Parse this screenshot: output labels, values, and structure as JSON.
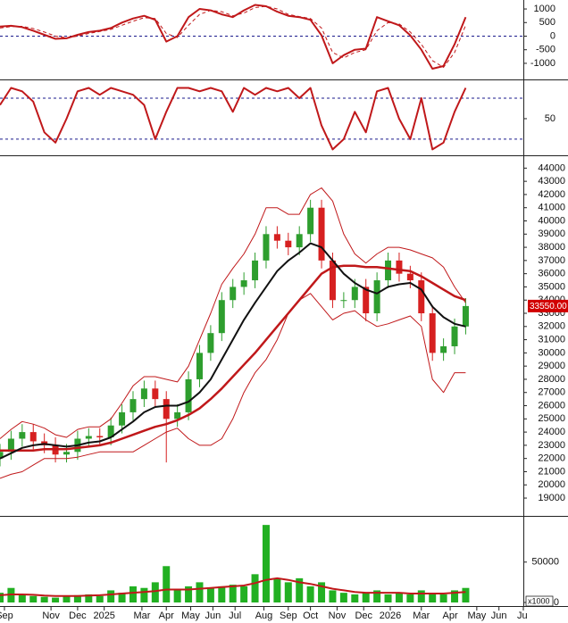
{
  "chart_data": [
    {
      "type": "line",
      "x": [
        0,
        5,
        10,
        15,
        20,
        25,
        30,
        35,
        40,
        45,
        50,
        55,
        60,
        65,
        70,
        75,
        80,
        85,
        90,
        95,
        100,
        105,
        110,
        115,
        120,
        125,
        130,
        135,
        140,
        145,
        150,
        155,
        160,
        165,
        170,
        175,
        180,
        185,
        190,
        195,
        200,
        205,
        210
      ],
      "xlim": [
        0,
        236
      ],
      "ylim": [
        -1560,
        1330
      ],
      "yticks": [
        1000,
        500,
        0,
        -500,
        -1000
      ],
      "hlines": [
        0
      ],
      "hline_color": "#1a1a8c",
      "series": [
        {
          "color": "#c0181a",
          "dashed": false,
          "values": [
            350,
            380,
            330,
            200,
            50,
            -100,
            -80,
            50,
            150,
            200,
            300,
            500,
            650,
            750,
            600,
            -200,
            0,
            700,
            1000,
            950,
            800,
            700,
            950,
            1150,
            1100,
            900,
            750,
            700,
            600,
            30,
            -1000,
            -700,
            -500,
            -460,
            700,
            550,
            400,
            30,
            -500,
            -1200,
            -1100,
            -300,
            700
          ]
        },
        {
          "color": "#c0181a",
          "dashed": true,
          "values": [
            300,
            350,
            360,
            280,
            150,
            0,
            -60,
            0,
            100,
            170,
            250,
            400,
            550,
            680,
            650,
            100,
            -50,
            400,
            800,
            950,
            900,
            750,
            850,
            1050,
            1100,
            1000,
            800,
            720,
            650,
            300,
            -600,
            -800,
            -600,
            -500,
            200,
            500,
            450,
            150,
            -300,
            -900,
            -1150,
            -600,
            400
          ]
        }
      ]
    },
    {
      "type": "line",
      "x": [
        0,
        5,
        10,
        15,
        20,
        25,
        30,
        35,
        40,
        45,
        50,
        55,
        60,
        65,
        70,
        75,
        80,
        85,
        90,
        95,
        100,
        105,
        110,
        115,
        120,
        125,
        130,
        135,
        140,
        145,
        150,
        155,
        160,
        165,
        170,
        175,
        180,
        185,
        190,
        195,
        200,
        205,
        210
      ],
      "xlim": [
        0,
        236
      ],
      "ylim": [
        -1,
        103.5
      ],
      "yticks": [
        50
      ],
      "hlines": [
        80,
        20
      ],
      "hline_color": "#1a1a8c",
      "series": [
        {
          "color": "#c0181a",
          "dashed": false,
          "values": [
            70,
            95,
            90,
            75,
            30,
            15,
            50,
            90,
            95,
            85,
            95,
            90,
            85,
            70,
            20,
            60,
            95,
            95,
            90,
            95,
            90,
            60,
            95,
            85,
            95,
            90,
            95,
            80,
            95,
            40,
            5,
            20,
            60,
            30,
            90,
            95,
            50,
            20,
            80,
            5,
            15,
            60,
            95
          ]
        }
      ]
    },
    {
      "type": "candlestick",
      "x": [
        0,
        5,
        10,
        15,
        20,
        25,
        30,
        35,
        40,
        45,
        50,
        55,
        60,
        65,
        70,
        75,
        80,
        85,
        90,
        95,
        100,
        105,
        110,
        115,
        120,
        125,
        130,
        135,
        140,
        145,
        150,
        155,
        160,
        165,
        170,
        175,
        180,
        185,
        190,
        195,
        200,
        205,
        210
      ],
      "xlim": [
        0,
        236
      ],
      "ylim": [
        17650,
        44700
      ],
      "yticks": [
        19000,
        20000,
        21000,
        22000,
        23000,
        24000,
        25000,
        26000,
        27000,
        28000,
        29000,
        30000,
        31000,
        32000,
        33000,
        34000,
        35000,
        36000,
        37000,
        38000,
        39000,
        40000,
        41000,
        42000,
        43000,
        44000
      ],
      "up_color": "#2e9e2e",
      "down_color": "#d62020",
      "open": [
        22000,
        22500,
        23500,
        24000,
        23300,
        23000,
        22300,
        22500,
        23500,
        23700,
        23600,
        24500,
        25500,
        26500,
        27300,
        26500,
        25000,
        25500,
        28000,
        30000,
        31500,
        34000,
        35000,
        35500,
        37000,
        39000,
        38500,
        38000,
        39000,
        41000,
        37000,
        34000,
        34000,
        35000,
        33000,
        35500,
        37000,
        36000,
        35500,
        33000,
        30000,
        30500,
        32000
      ],
      "high": [
        23100,
        24100,
        24600,
        24600,
        23900,
        23600,
        23100,
        24100,
        24300,
        24300,
        25100,
        26100,
        27100,
        27900,
        27900,
        27100,
        26100,
        28600,
        30600,
        32100,
        34600,
        35600,
        36100,
        37600,
        39600,
        39600,
        39100,
        39600,
        41600,
        41600,
        37600,
        34600,
        35600,
        35600,
        36100,
        37600,
        37600,
        36600,
        36100,
        33600,
        31100,
        32600,
        34150
      ],
      "low": [
        21400,
        21900,
        22900,
        22700,
        22400,
        21700,
        21700,
        21900,
        22900,
        23000,
        23000,
        23900,
        24900,
        25900,
        25900,
        21700,
        24400,
        24900,
        27400,
        29400,
        30900,
        33400,
        34400,
        34900,
        36400,
        37900,
        37400,
        37400,
        38400,
        36400,
        33400,
        33400,
        33400,
        32400,
        32400,
        34900,
        35400,
        34900,
        32400,
        29400,
        29400,
        29900,
        31400
      ],
      "close": [
        22500,
        23500,
        24000,
        23300,
        23000,
        22300,
        22500,
        23500,
        23700,
        23600,
        24500,
        25500,
        26500,
        27300,
        26500,
        25000,
        25500,
        28000,
        30000,
        31500,
        34000,
        35000,
        35500,
        37000,
        39000,
        38500,
        38000,
        39000,
        41000,
        37000,
        34000,
        34000,
        35000,
        33000,
        35500,
        37000,
        36000,
        35500,
        33000,
        30000,
        30500,
        32000,
        33550
      ],
      "overlays": [
        {
          "color": "#c0181a",
          "width": 1,
          "values": [
            23500,
            24200,
            24800,
            24600,
            24300,
            23800,
            23600,
            24200,
            24400,
            24400,
            25000,
            26200,
            27500,
            28200,
            28200,
            28000,
            27800,
            29000,
            31000,
            33000,
            35200,
            36400,
            37500,
            39000,
            41000,
            41000,
            40500,
            40500,
            42000,
            42500,
            41500,
            39000,
            37500,
            36800,
            37500,
            38000,
            38000,
            37800,
            37500,
            37200,
            36500,
            35000,
            33800
          ]
        },
        {
          "color": "#c0181a",
          "width": 1,
          "values": [
            20500,
            20800,
            21000,
            21500,
            22000,
            22000,
            22000,
            22100,
            22300,
            22500,
            22500,
            22500,
            22500,
            23000,
            23500,
            24000,
            24300,
            23500,
            23000,
            23000,
            23500,
            25000,
            27000,
            28500,
            29500,
            31000,
            33000,
            34000,
            34500,
            33500,
            32500,
            33000,
            33200,
            32500,
            32000,
            32200,
            32500,
            32800,
            32000,
            28000,
            27000,
            28500,
            28500
          ]
        },
        {
          "color": "#c0181a",
          "width": 2.5,
          "values": [
            22600,
            22600,
            22600,
            22600,
            22700,
            22700,
            22700,
            22800,
            22900,
            23000,
            23200,
            23500,
            23800,
            24100,
            24400,
            24600,
            24900,
            25300,
            25800,
            26500,
            27300,
            28200,
            29100,
            30000,
            31000,
            32000,
            33000,
            34000,
            35000,
            36000,
            36500,
            36600,
            36600,
            36500,
            36500,
            36400,
            36300,
            36200,
            35800,
            35300,
            34800,
            34300,
            34000
          ]
        },
        {
          "color": "#111111",
          "width": 2,
          "values": [
            22000,
            22400,
            22800,
            23000,
            23100,
            23000,
            22900,
            23000,
            23200,
            23300,
            23600,
            24200,
            24800,
            25500,
            25900,
            26000,
            26000,
            26300,
            27000,
            28000,
            29500,
            31000,
            32500,
            33800,
            35000,
            36200,
            37000,
            37600,
            38300,
            38000,
            37000,
            36000,
            35300,
            34800,
            34500,
            35000,
            35200,
            35300,
            34800,
            33500,
            32700,
            32200,
            32000
          ]
        }
      ],
      "last_price": {
        "value": 33550,
        "label": "33550.00",
        "color": "#d10000"
      }
    },
    {
      "type": "bar",
      "x": [
        0,
        5,
        10,
        15,
        20,
        25,
        30,
        35,
        40,
        45,
        50,
        55,
        60,
        65,
        70,
        75,
        80,
        85,
        90,
        95,
        100,
        105,
        110,
        115,
        120,
        125,
        130,
        135,
        140,
        145,
        150,
        155,
        160,
        165,
        170,
        175,
        180,
        185,
        190,
        195,
        200,
        205,
        210
      ],
      "xlim": [
        0,
        236
      ],
      "ylim": [
        0,
        105000
      ],
      "yticks": [
        50000,
        0
      ],
      "unit": "x1000",
      "color": "#22b022",
      "values": [
        12000,
        18000,
        10000,
        8000,
        7000,
        6000,
        8000,
        9000,
        10000,
        8000,
        15000,
        12000,
        20000,
        18000,
        25000,
        45000,
        15000,
        20000,
        25000,
        18000,
        20000,
        22000,
        20000,
        35000,
        96000,
        30000,
        25000,
        30000,
        20000,
        25000,
        15000,
        12000,
        10000,
        12000,
        15000,
        10000,
        12000,
        10000,
        15000,
        12000,
        10000,
        15000,
        18000
      ],
      "overlay": {
        "color": "#c0181a",
        "values": [
          9000,
          10000,
          10000,
          9500,
          8500,
          8000,
          8000,
          8000,
          8500,
          9000,
          10000,
          11000,
          12000,
          13000,
          14000,
          16000,
          16000,
          16000,
          17000,
          18000,
          19000,
          20000,
          21000,
          24000,
          28000,
          30000,
          28000,
          25000,
          23000,
          20000,
          17000,
          15000,
          13000,
          12000,
          12000,
          12000,
          12000,
          11000,
          11000,
          11000,
          11000,
          12000,
          13000
        ]
      },
      "xticks": [
        {
          "value": 2,
          "label": "Sep"
        },
        {
          "value": 23,
          "label": "Nov"
        },
        {
          "value": 35,
          "label": "Dec"
        },
        {
          "value": 47,
          "label": "2025"
        },
        {
          "value": 64,
          "label": "Mar"
        },
        {
          "value": 75,
          "label": "Apr"
        },
        {
          "value": 86,
          "label": "May"
        },
        {
          "value": 96,
          "label": "Jun"
        },
        {
          "value": 106,
          "label": "Jul"
        },
        {
          "value": 119,
          "label": "Aug"
        },
        {
          "value": 130,
          "label": "Sep"
        },
        {
          "value": 140,
          "label": "Oct"
        },
        {
          "value": 152,
          "label": "Nov"
        },
        {
          "value": 164,
          "label": "Dec"
        },
        {
          "value": 176,
          "label": "2026"
        },
        {
          "value": 190,
          "label": "Mar"
        },
        {
          "value": 203,
          "label": "Apr"
        },
        {
          "value": 215,
          "label": "May"
        },
        {
          "value": 225,
          "label": "Jun"
        },
        {
          "value": 236,
          "label": "Jul"
        }
      ]
    }
  ]
}
